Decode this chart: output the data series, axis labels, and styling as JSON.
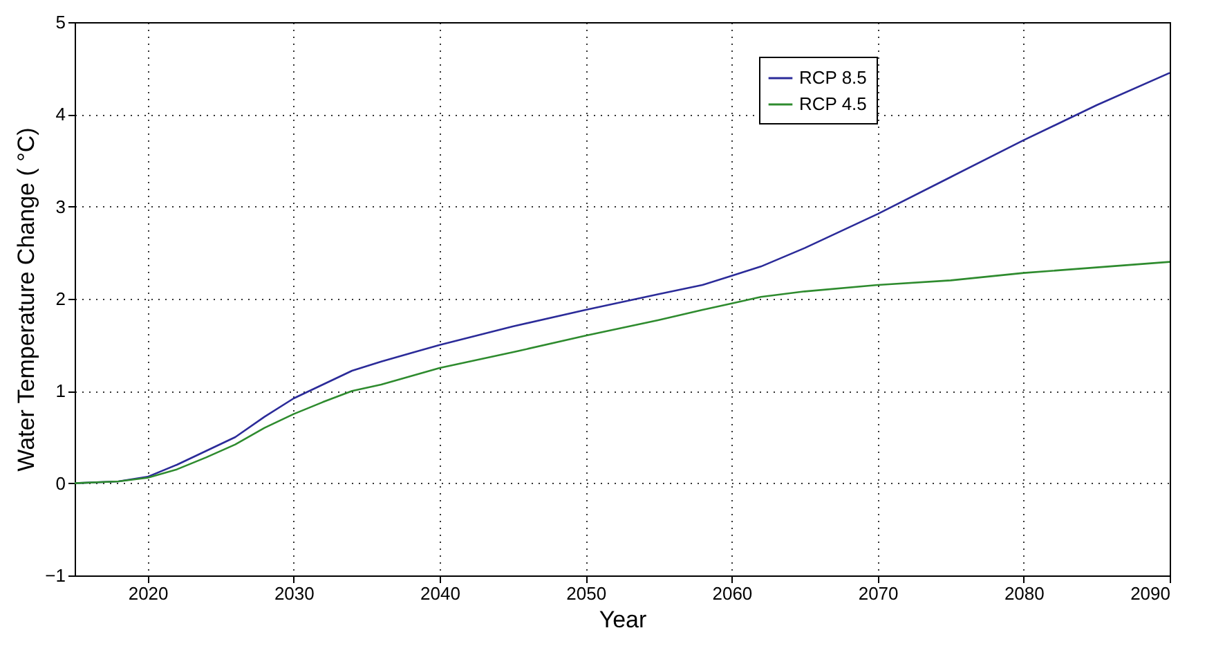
{
  "chart_data": {
    "type": "line",
    "xlabel": "Year",
    "ylabel": "Water Temperature Change ( °C)",
    "xlim": [
      2015,
      2090
    ],
    "xticks": [
      2020,
      2030,
      2040,
      2050,
      2060,
      2070,
      2080,
      2090
    ],
    "ylim": [
      -1,
      5
    ],
    "yticks": [
      -1,
      0,
      1,
      2,
      3,
      4,
      5
    ],
    "grid": true,
    "legend": "top right",
    "line_style": "solid",
    "marker": "none",
    "x": [
      2015,
      2018,
      2020,
      2022,
      2024,
      2026,
      2028,
      2030,
      2032,
      2034,
      2036,
      2040,
      2045,
      2050,
      2055,
      2058,
      2060,
      2062,
      2065,
      2070,
      2075,
      2080,
      2085,
      2090
    ],
    "series": [
      {
        "name": "RCP 8.5",
        "color": "#2b2b99",
        "values": [
          0,
          0.02,
          0.07,
          0.2,
          0.35,
          0.5,
          0.72,
          0.92,
          1.07,
          1.22,
          1.32,
          1.5,
          1.7,
          1.88,
          2.05,
          2.15,
          2.25,
          2.35,
          2.55,
          2.92,
          3.32,
          3.72,
          4.1,
          4.45
        ]
      },
      {
        "name": "RCP 4.5",
        "color": "#2e8b2e",
        "values": [
          0,
          0.02,
          0.06,
          0.15,
          0.28,
          0.42,
          0.6,
          0.75,
          0.88,
          1.0,
          1.07,
          1.25,
          1.42,
          1.6,
          1.77,
          1.88,
          1.95,
          2.02,
          2.08,
          2.15,
          2.2,
          2.28,
          2.34,
          2.4
        ]
      }
    ]
  }
}
